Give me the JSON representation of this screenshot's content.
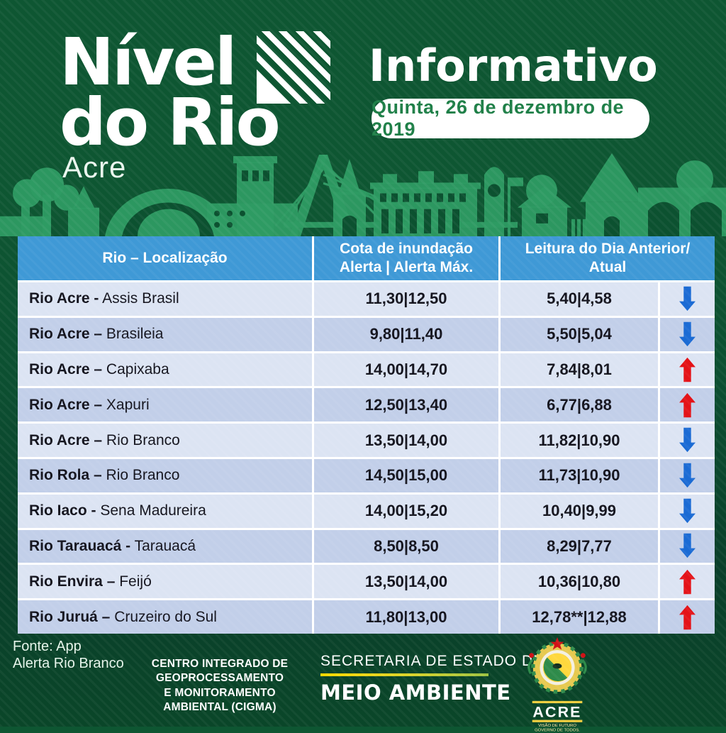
{
  "page": {
    "title_line1": "Nível",
    "title_line2": "do Rio",
    "subtitle": "Acre",
    "right_title": "Informativo",
    "date": "Quinta, 26 de dezembro de 2019"
  },
  "table": {
    "header": {
      "col1": "Rio – Localização",
      "col2_line1": "Cota de inundação",
      "col2_line2": "Alerta | Alerta Máx.",
      "col3_line1": "Leitura do Dia Anterior/",
      "col3_line2": "Atual"
    },
    "rows": [
      {
        "river": "Rio Acre",
        "dash": "-",
        "location": "Assis Brasil",
        "cota": "11,30|12,50",
        "leitura": "5,40|4,58",
        "trend": "down"
      },
      {
        "river": "Rio Acre",
        "dash": "–",
        "location": "Brasileia",
        "cota": "9,80|11,40",
        "leitura": "5,50|5,04",
        "trend": "down"
      },
      {
        "river": "Rio Acre",
        "dash": "–",
        "location": "Capixaba",
        "cota": "14,00|14,70",
        "leitura": "7,84|8,01",
        "trend": "up"
      },
      {
        "river": "Rio Acre",
        "dash": "–",
        "location": "Xapuri",
        "cota": "12,50|13,40",
        "leitura": "6,77|6,88",
        "trend": "up"
      },
      {
        "river": "Rio Acre",
        "dash": "–",
        "location": "Rio Branco",
        "cota": "13,50|14,00",
        "leitura": "11,82|10,90",
        "trend": "down"
      },
      {
        "river": "Rio Rola",
        "dash": "–",
        "location": "Rio Branco",
        "cota": "14,50|15,00",
        "leitura": "11,73|10,90",
        "trend": "down"
      },
      {
        "river": "Rio Iaco",
        "dash": "-",
        "location": "Sena Madureira",
        "cota": "14,00|15,20",
        "leitura": "10,40|9,99",
        "trend": "down"
      },
      {
        "river": "Rio Tarauacá",
        "dash": "-",
        "location": "Tarauacá",
        "cota": "8,50|8,50",
        "leitura": "8,29|7,77",
        "trend": "down"
      },
      {
        "river": "Rio Envira",
        "dash": "–",
        "location": "Feijó",
        "cota": "13,50|14,00",
        "leitura": "10,36|10,80",
        "trend": "up"
      },
      {
        "river": "Rio Juruá",
        "dash": "–",
        "location": "Cruzeiro do Sul",
        "cota": "11,80|13,00",
        "leitura": "12,78**|12,88",
        "trend": "up"
      }
    ]
  },
  "footer": {
    "fonte_line1": "Fonte: App",
    "fonte_line2": "Alerta Rio Branco",
    "cigma_line1": "CENTRO INTEGRADO DE",
    "cigma_line2": "GEOPROCESSAMENTO",
    "cigma_line3": "E MONITORAMENTO",
    "cigma_line4": "AMBIENTAL (CIGMA)",
    "secretaria_top": "SECRETARIA DE ESTADO DE",
    "secretaria_bottom": "MEIO AMBIENTE",
    "logo": {
      "state": "ACRE",
      "caption1": "VISÃO DE FUTURO",
      "caption2": "GOVERNO DE TODOS."
    }
  },
  "colors": {
    "background_green": "#0e5632",
    "skyline_green": "#2e9b63",
    "header_blue": "#3f99d6",
    "row_light": "#dce4f3",
    "row_dark": "#c2cfe9",
    "trend_up_red": "#e41318",
    "trend_down_blue": "#1b6bd4",
    "date_text_green": "#1e7f47",
    "accent_yellow": "#ffd900"
  }
}
